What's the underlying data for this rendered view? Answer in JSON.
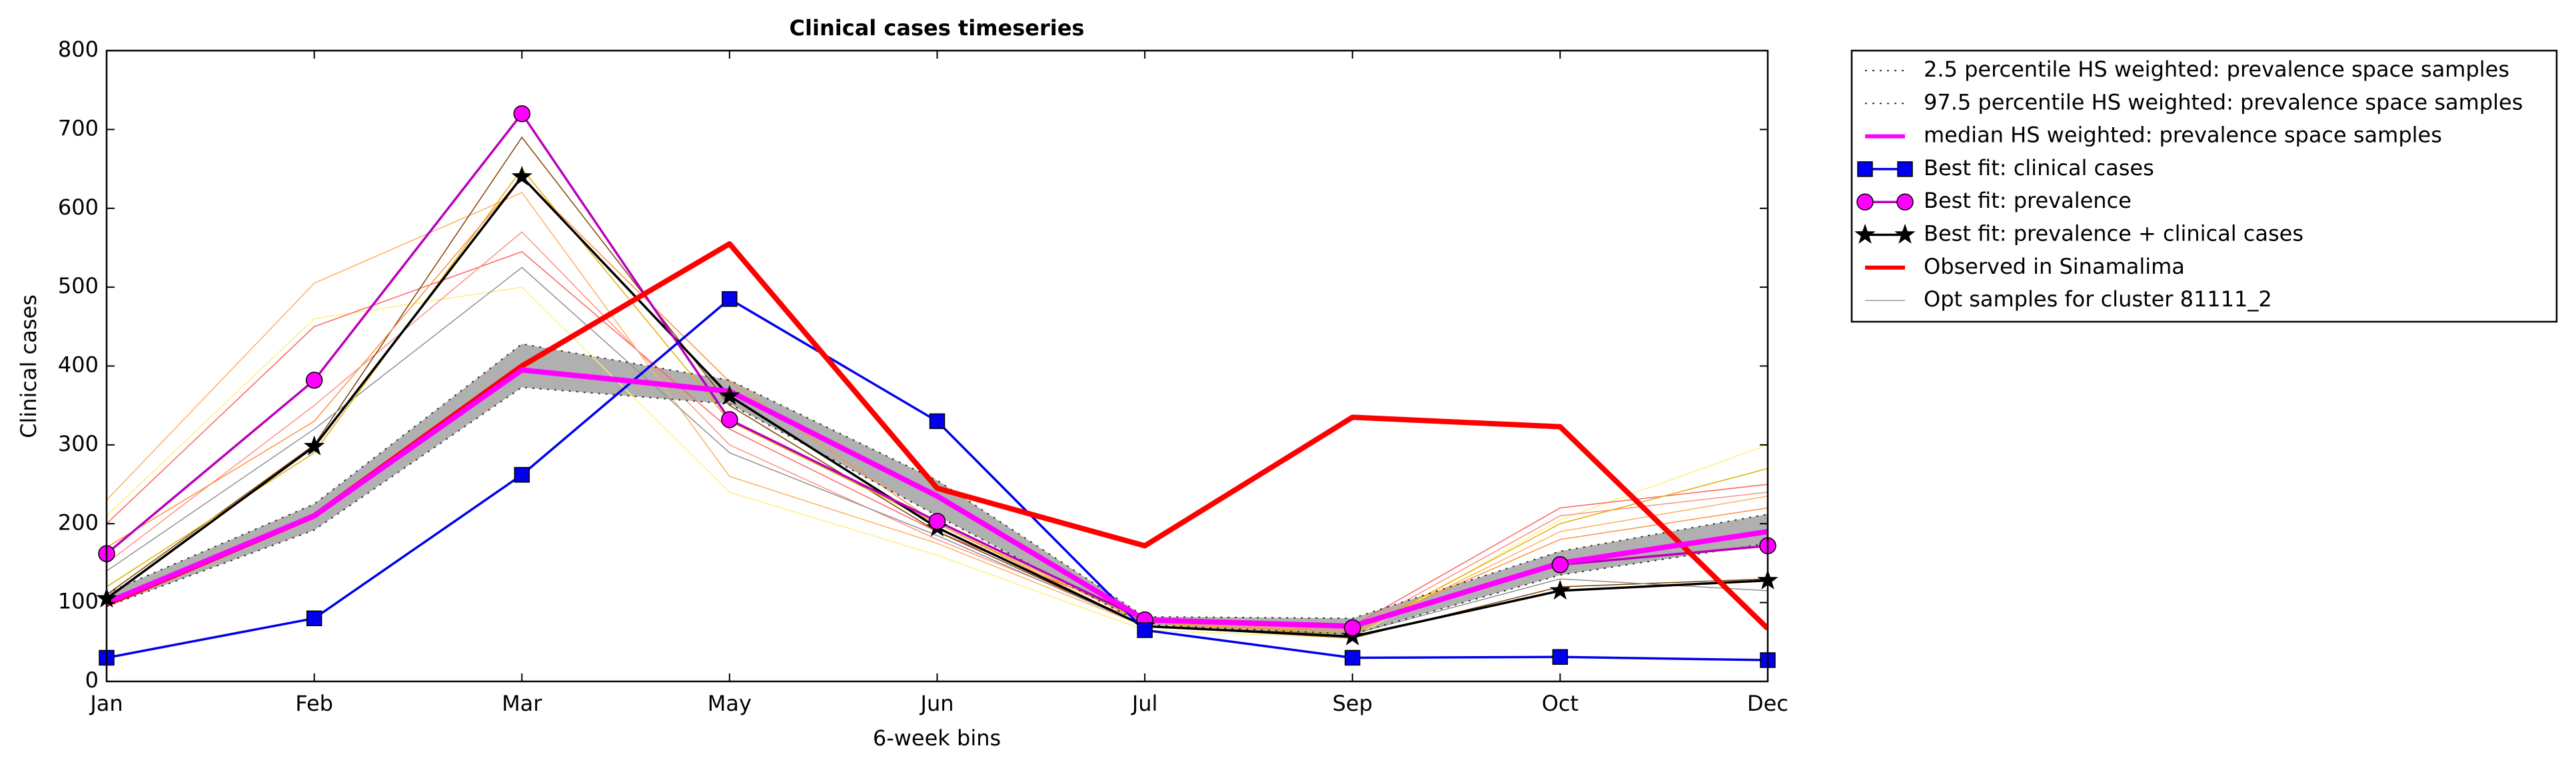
{
  "chart_data": {
    "type": "line",
    "title": "Clinical cases timeseries",
    "xlabel": "6-week bins",
    "ylabel": "Clinical cases",
    "categories": [
      "Jan",
      "Feb",
      "Mar",
      "May",
      "Jun",
      "Jul",
      "Sep",
      "Oct",
      "Dec"
    ],
    "ylim": [
      0,
      800
    ],
    "yticks": [
      0,
      100,
      200,
      300,
      400,
      500,
      600,
      700,
      800
    ],
    "legend": "outside-upper-right",
    "band": {
      "lower": 0,
      "upper": 1,
      "color": "#b0b0b0"
    },
    "series": [
      {
        "name": "2.5 percentile HS weighted: prevalence space samples",
        "color": "#333333",
        "style": "dotted",
        "width": 2,
        "values": [
          95,
          192,
          373,
          352,
          210,
          72,
          60,
          135,
          175
        ]
      },
      {
        "name": "97.5 percentile HS weighted: prevalence space samples",
        "color": "#333333",
        "style": "dotted",
        "width": 2,
        "values": [
          112,
          225,
          428,
          382,
          255,
          82,
          80,
          165,
          212
        ]
      },
      {
        "name": "median HS weighted: prevalence space samples",
        "color": "#ff00ff",
        "style": "solid",
        "width": 8,
        "values": [
          100,
          210,
          395,
          368,
          235,
          78,
          70,
          150,
          190
        ]
      },
      {
        "name": "Best fit: clinical cases",
        "color": "#0000ee",
        "style": "solid",
        "width": 3.5,
        "marker": "square",
        "markerColor": "#0000ee",
        "values": [
          30,
          80,
          262,
          485,
          330,
          65,
          30,
          31,
          27
        ]
      },
      {
        "name": "Best fit: prevalence",
        "color": "#bb00bb",
        "style": "solid",
        "width": 3.5,
        "marker": "circle",
        "markerColor": "#ff00ff",
        "values": [
          162,
          382,
          720,
          332,
          203,
          78,
          68,
          148,
          172
        ]
      },
      {
        "name": "Best fit: prevalence + clinical cases",
        "color": "#000000",
        "style": "solid",
        "width": 3.5,
        "marker": "star",
        "markerColor": "#000000",
        "values": [
          105,
          298,
          640,
          362,
          195,
          70,
          57,
          115,
          128
        ]
      },
      {
        "name": "Observed in Sinamalima",
        "color": "#ff0000",
        "style": "solid",
        "width": 8,
        "values": [
          98,
          210,
          400,
          555,
          245,
          172,
          335,
          323,
          67
        ]
      },
      {
        "name": "Opt samples for cluster 81111_2",
        "color": "#999999",
        "style": "solid",
        "width": 1.5,
        "samples": [
          {
            "color": "#ffb060",
            "values": [
              230,
              505,
              620,
              260,
              175,
              70,
              60,
              190,
              235
            ]
          },
          {
            "color": "#ffee80",
            "values": [
              210,
              460,
              500,
              240,
              160,
              65,
              55,
              205,
              300
            ]
          },
          {
            "color": "#ff6060",
            "values": [
              200,
              450,
              545,
              320,
              190,
              80,
              70,
              220,
              250
            ]
          },
          {
            "color": "#ff9080",
            "values": [
              150,
              350,
              570,
              300,
              180,
              75,
              65,
              210,
              240
            ]
          },
          {
            "color": "#804000",
            "values": [
              110,
              300,
              690,
              350,
              190,
              70,
              55,
              120,
              130
            ]
          },
          {
            "color": "#909090",
            "values": [
              140,
              320,
              525,
              290,
              185,
              70,
              60,
              130,
              115
            ]
          },
          {
            "color": "#e0b000",
            "values": [
              120,
              290,
              650,
              330,
              200,
              75,
              60,
              200,
              270
            ]
          },
          {
            "color": "#ff9040",
            "values": [
              170,
              330,
              640,
              380,
              200,
              70,
              65,
              180,
              220
            ]
          }
        ]
      }
    ]
  }
}
